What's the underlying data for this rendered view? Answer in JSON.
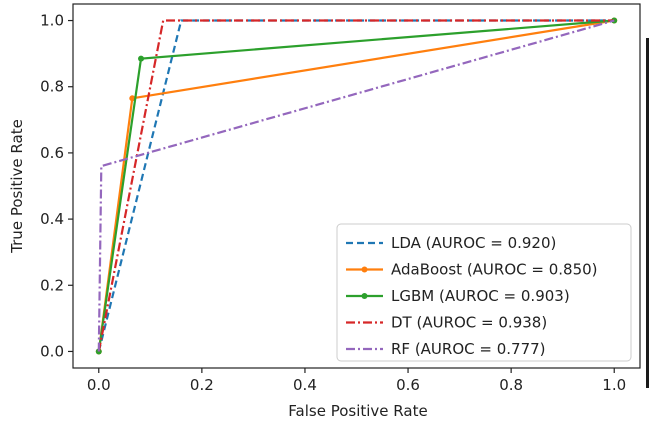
{
  "chart_data": {
    "type": "line",
    "title": "",
    "xlabel": "False Positive Rate",
    "ylabel": "True Positive Rate",
    "xlim": [
      -0.05,
      1.05
    ],
    "ylim": [
      -0.05,
      1.05
    ],
    "xticks": [
      0.0,
      0.2,
      0.4,
      0.6,
      0.8,
      1.0
    ],
    "xtick_labels": [
      "0.0",
      "0.2",
      "0.4",
      "0.6",
      "0.8",
      "1.0"
    ],
    "yticks": [
      0.0,
      0.2,
      0.4,
      0.6,
      0.8,
      1.0
    ],
    "ytick_labels": [
      "0.0",
      "0.2",
      "0.4",
      "0.6",
      "0.8",
      "1.0"
    ],
    "grid": false,
    "legend_position": "lower-right",
    "series": [
      {
        "name": "LDA (AUROC = 0.920)",
        "color": "#1f77b4",
        "dash": "dashed",
        "marker": "none",
        "x": [
          0.0,
          0.16,
          1.0
        ],
        "y": [
          0.0,
          1.0,
          1.0
        ]
      },
      {
        "name": "AdaBoost (AUROC = 0.850)",
        "color": "#ff7f0e",
        "dash": "solid",
        "marker": "dot",
        "x": [
          0.0,
          0.065,
          1.0
        ],
        "y": [
          0.0,
          0.765,
          1.0
        ]
      },
      {
        "name": "LGBM (AUROC = 0.903)",
        "color": "#2ca02c",
        "dash": "solid",
        "marker": "dot",
        "x": [
          0.0,
          0.082,
          1.0
        ],
        "y": [
          0.0,
          0.885,
          1.0
        ]
      },
      {
        "name": "DT (AUROC = 0.938)",
        "color": "#d62728",
        "dash": "dashdot",
        "marker": "none",
        "x": [
          0.0,
          0.125,
          1.0
        ],
        "y": [
          0.0,
          1.0,
          1.0
        ]
      },
      {
        "name": "RF (AUROC = 0.777)",
        "color": "#9467bd",
        "dash": "dashdot",
        "marker": "none",
        "x": [
          0.0,
          0.005,
          1.0
        ],
        "y": [
          0.0,
          0.56,
          1.0
        ]
      }
    ]
  }
}
